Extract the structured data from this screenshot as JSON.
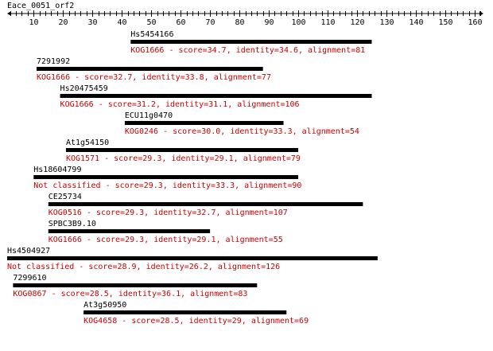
{
  "title": "Eace_0051_orf2",
  "colors": {
    "bar": "#000000",
    "hit_label": "#000000",
    "kog_text": "#cc0000",
    "axis": "#000000"
  },
  "chart_data": {
    "type": "alignment-map",
    "query": "Eace_0051_orf2",
    "axis_range": [
      1,
      163
    ],
    "ticks": [
      10,
      20,
      30,
      40,
      50,
      60,
      70,
      80,
      90,
      100,
      110,
      120,
      130,
      140,
      150,
      160
    ],
    "hits": [
      {
        "name": "Hs5454166",
        "start": 43,
        "end": 125,
        "desc": "KOG1666 - score=34.7, identity=34.6, alignment=81"
      },
      {
        "name": "7291992",
        "start": 11,
        "end": 88,
        "desc": "KOG1666 - score=32.7, identity=33.8, alignment=77"
      },
      {
        "name": "Hs20475459",
        "start": 19,
        "end": 125,
        "desc": "KOG1666 - score=31.2, identity=31.1, alignment=106"
      },
      {
        "name": "ECU11g0470",
        "start": 41,
        "end": 95,
        "desc": "KOG0246 - score=30.0, identity=33.3, alignment=54"
      },
      {
        "name": "At1g54150",
        "start": 21,
        "end": 100,
        "desc": "KOG1571 - score=29.3, identity=29.1, alignment=79"
      },
      {
        "name": "Hs18604799",
        "start": 10,
        "end": 100,
        "desc": "Not classified - score=29.3, identity=33.3, alignment=90"
      },
      {
        "name": "CE25734",
        "start": 15,
        "end": 122,
        "desc": "KOG0516 - score=29.3, identity=32.7, alignment=107"
      },
      {
        "name": "SPBC3B9.10",
        "start": 15,
        "end": 70,
        "desc": "KOG1666 - score=29.3, identity=29.1, alignment=55"
      },
      {
        "name": "Hs4504927",
        "start": 1,
        "end": 127,
        "desc": "Not classified - score=28.9, identity=26.2, alignment=126"
      },
      {
        "name": "7299610",
        "start": 3,
        "end": 86,
        "desc": "KOG0867 - score=28.5, identity=36.1, alignment=83"
      },
      {
        "name": "At3g50950",
        "start": 27,
        "end": 96,
        "desc": "KOG4658 - score=28.5, identity=29, alignment=69"
      }
    ]
  }
}
